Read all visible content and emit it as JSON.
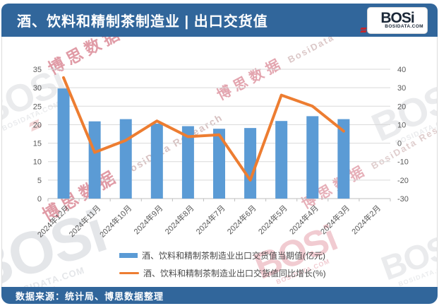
{
  "header": {
    "title": "酒、饮料和精制茶制造业 | 出口交货值",
    "logo": {
      "name": "BOSi",
      "domain": "BOSIDATA.COM"
    }
  },
  "footer": {
    "source": "数据来源：统计局、博思数据整理"
  },
  "watermarks": {
    "cn": "博思数据",
    "en": "BosiData Research",
    "logo": "BOSi",
    "logo_domain": "BOSIDATA.COM"
  },
  "colors": {
    "band_blue": "#31669B",
    "bar_blue": "#5B9BD5",
    "line_orange": "#ED7D31",
    "grid": "#D9D9D9",
    "axis_line": "#BFBFBF",
    "axis_text": "#595959"
  },
  "chart_data": {
    "type": "bar+line",
    "title": "酒、饮料和精制茶制造业出口交货值",
    "categories": [
      "2024年12月",
      "2024年11月",
      "2024年10月",
      "2024年9月",
      "2024年8月",
      "2024年7月",
      "2024年6月",
      "2024年5月",
      "2024年4月",
      "2024年3月",
      "2024年2月"
    ],
    "series": [
      {
        "name": "酒、饮料和精制茶制造业出口交货值当期值(亿元)",
        "type": "bar",
        "axis": "left",
        "color": "#5B9BD5",
        "values": [
          29.8,
          20.9,
          21.5,
          20.3,
          19.6,
          18.9,
          19.1,
          21.0,
          22.3,
          21.5,
          null
        ]
      },
      {
        "name": "酒、饮料和精制茶制造业出口交货值同比增长(%)",
        "type": "line",
        "axis": "right",
        "color": "#ED7D31",
        "values": [
          35.5,
          -5,
          1.5,
          12,
          3.5,
          4.5,
          -20,
          26,
          20,
          6.5,
          null
        ]
      }
    ],
    "left_axis": {
      "min": 0,
      "max": 35,
      "step": 5
    },
    "right_axis": {
      "min": -30,
      "max": 40,
      "step": 10
    },
    "grid": true,
    "legend_position": "bottom"
  }
}
